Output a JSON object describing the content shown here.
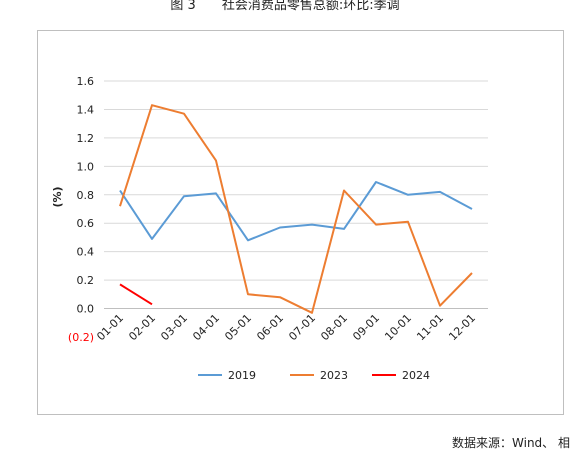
{
  "figure": {
    "number": "图 3",
    "title": "社会消费品零售总额:环比:季调",
    "source": "数据来源：Wind、 相"
  },
  "chart_data": {
    "type": "line",
    "ylabel": "(%)",
    "xlabel": "",
    "ylim": [
      -0.2,
      1.6
    ],
    "yticks": [
      {
        "value": 1.6,
        "label": "1.6",
        "color": "#222222"
      },
      {
        "value": 1.4,
        "label": "1.4",
        "color": "#222222"
      },
      {
        "value": 1.2,
        "label": "1.2",
        "color": "#222222"
      },
      {
        "value": 1.0,
        "label": "1.0",
        "color": "#222222"
      },
      {
        "value": 0.8,
        "label": "0.8",
        "color": "#222222"
      },
      {
        "value": 0.6,
        "label": "0.6",
        "color": "#222222"
      },
      {
        "value": 0.4,
        "label": "0.4",
        "color": "#222222"
      },
      {
        "value": 0.2,
        "label": "0.2",
        "color": "#222222"
      },
      {
        "value": 0.0,
        "label": "0.0",
        "color": "#222222"
      },
      {
        "value": -0.2,
        "label": "(0.2)",
        "color": "#ff0000"
      }
    ],
    "categories": [
      "01-01",
      "02-01",
      "03-01",
      "04-01",
      "05-01",
      "06-01",
      "07-01",
      "08-01",
      "09-01",
      "10-01",
      "11-01",
      "12-01"
    ],
    "series": [
      {
        "name": "2019",
        "color": "#5b9bd5",
        "values": [
          0.83,
          0.49,
          0.79,
          0.81,
          0.48,
          0.57,
          0.59,
          0.56,
          0.89,
          0.8,
          0.82,
          0.7
        ]
      },
      {
        "name": "2023",
        "color": "#ed7d31",
        "values": [
          0.72,
          1.43,
          1.37,
          1.04,
          0.1,
          0.08,
          -0.03,
          0.83,
          0.59,
          0.61,
          0.02,
          0.25
        ]
      },
      {
        "name": "2024",
        "color": "#ff0000",
        "values": [
          0.17,
          0.03,
          null,
          null,
          null,
          null,
          null,
          null,
          null,
          null,
          null,
          null
        ]
      }
    ],
    "grid": true,
    "legend": "bottom"
  }
}
